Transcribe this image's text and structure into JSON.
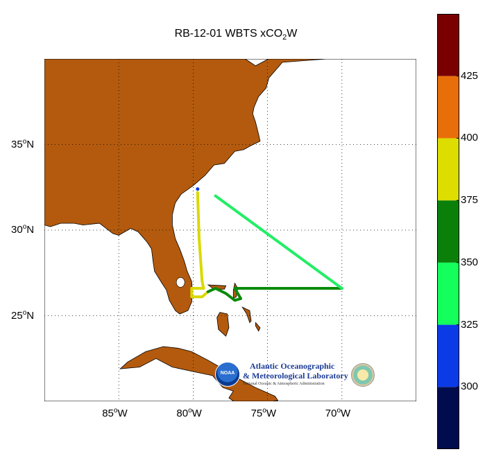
{
  "title": {
    "main": "RB-12-01 WBTS xCO",
    "sub": "2",
    "tail": "W"
  },
  "map": {
    "lon_range": [
      -90,
      -65
    ],
    "lat_range": [
      20,
      40
    ],
    "land_color": "#b35a0e",
    "ocean_color": "#ffffff",
    "grid": "dotted",
    "x_ticks": [
      {
        "num": "85",
        "deg": "o",
        "dir": "W"
      },
      {
        "num": "80",
        "deg": "o",
        "dir": "W"
      },
      {
        "num": "75",
        "deg": "o",
        "dir": "W"
      },
      {
        "num": "70",
        "deg": "o",
        "dir": "W"
      }
    ],
    "y_ticks": [
      {
        "num": "35",
        "deg": "o",
        "dir": "N"
      },
      {
        "num": "30",
        "deg": "o",
        "dir": "N"
      },
      {
        "num": "25",
        "deg": "o",
        "dir": "N"
      }
    ]
  },
  "track": [
    {
      "seg": [
        [
          -79.7,
          32.2
        ],
        [
          -79.6,
          29.5
        ],
        [
          -79.4,
          27.0
        ],
        [
          -79.3,
          26.6
        ]
      ],
      "color": "#d9d900",
      "value_range": [
        375,
        400
      ]
    },
    {
      "seg": [
        [
          -79.3,
          26.6
        ],
        [
          -80.1,
          26.6
        ],
        [
          -80.1,
          26.1
        ],
        [
          -79.4,
          26.1
        ],
        [
          -79.0,
          26.4
        ]
      ],
      "color": "#d9d900",
      "value_range": [
        375,
        400
      ]
    },
    {
      "seg": [
        [
          -79.0,
          26.4
        ],
        [
          -78.5,
          26.6
        ],
        [
          -77.8,
          26.3
        ],
        [
          -77.2,
          25.9
        ],
        [
          -76.8,
          26.0
        ]
      ],
      "color": "#0a8a0a",
      "value_range": [
        350,
        375
      ]
    },
    {
      "seg": [
        [
          -76.8,
          26.0
        ],
        [
          -77.2,
          26.6
        ],
        [
          -73.0,
          26.6
        ],
        [
          -70.0,
          26.6
        ]
      ],
      "color": "#0a8a0a",
      "value_range": [
        350,
        375
      ]
    },
    {
      "seg": [
        [
          -70.0,
          26.6
        ],
        [
          -78.5,
          32.0
        ]
      ],
      "color": "#22ee66",
      "value_range": [
        325,
        350
      ]
    }
  ],
  "colorbar": {
    "range": [
      275,
      450
    ],
    "bands": [
      {
        "from": 275,
        "to": 300,
        "color": "#000c4d"
      },
      {
        "from": 300,
        "to": 325,
        "color": "#0a3be6"
      },
      {
        "from": 325,
        "to": 350,
        "color": "#14ff5c"
      },
      {
        "from": 350,
        "to": 375,
        "color": "#0a800a"
      },
      {
        "from": 375,
        "to": 400,
        "color": "#dddd00"
      },
      {
        "from": 400,
        "to": 425,
        "color": "#e86e0a"
      },
      {
        "from": 425,
        "to": 450,
        "color": "#7a0000"
      }
    ],
    "labels": [
      "300",
      "325",
      "350",
      "375",
      "400",
      "425"
    ]
  },
  "logo": {
    "badge": "NOAA",
    "line1": "Atlantic Oceanographic",
    "line2": "& Meteorological Laboratory",
    "line3": "National Oceanic & Atmospheric Administration"
  }
}
